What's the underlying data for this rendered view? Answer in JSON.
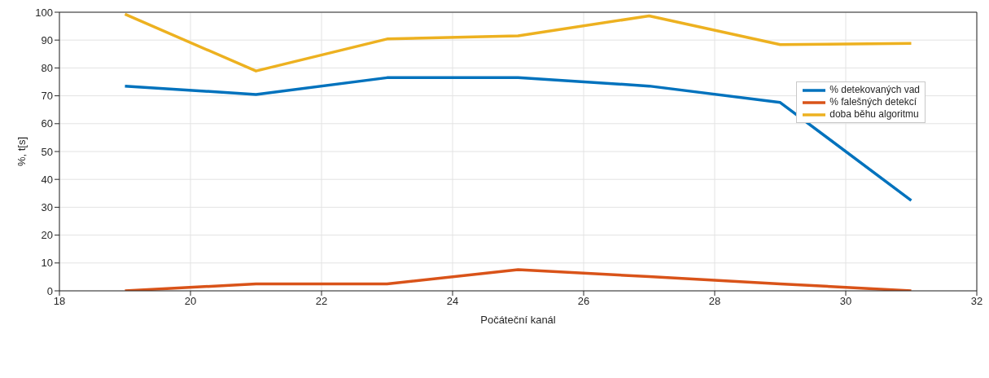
{
  "chart_data": {
    "type": "line",
    "xlabel": "Počáteční kanál",
    "ylabel": "%, t[s]",
    "x": [
      19,
      21,
      23,
      25,
      27,
      29,
      31
    ],
    "series": [
      {
        "name": "% detekovaných vad",
        "color": "#0072bd",
        "values": [
          73.5,
          70.5,
          76.5,
          76.5,
          73.5,
          67.6,
          32.4
        ]
      },
      {
        "name": "% falešných detekcí",
        "color": "#d95319",
        "values": [
          0,
          2.5,
          2.5,
          7.6,
          5.1,
          2.5,
          0
        ]
      },
      {
        "name": "doba běhu algoritmu",
        "color": "#edb120",
        "values": [
          99.3,
          78.9,
          90.4,
          91.5,
          98.7,
          88.4,
          88.8
        ]
      }
    ],
    "xlim": [
      18,
      32
    ],
    "xticks": [
      18,
      20,
      22,
      24,
      26,
      28,
      30,
      32
    ],
    "ylim": [
      0,
      100
    ],
    "yticks": [
      0,
      10,
      20,
      30,
      40,
      50,
      60,
      70,
      80,
      90,
      100
    ],
    "grid": true,
    "legend": "right",
    "marker": "none",
    "line_style": "solid"
  }
}
